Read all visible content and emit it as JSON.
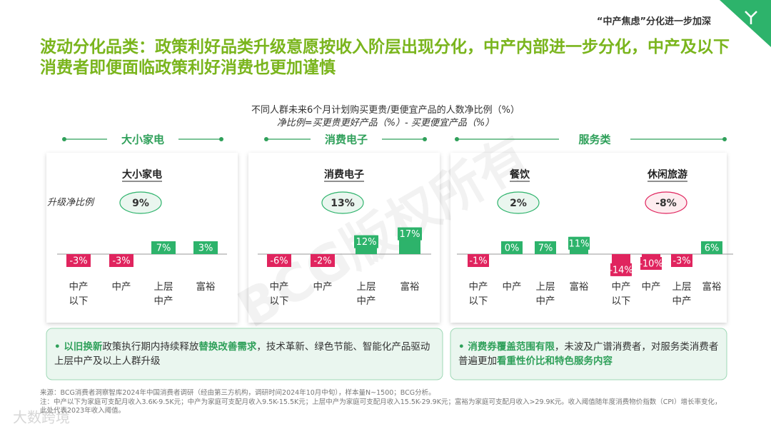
{
  "header": {
    "tag": "“中产焦虑”分化进一步加深",
    "title": "波动分化品类：政策利好品类升级意愿按收入阶层出现分化，中产内部进一步分化，中产及以下消费者即便面临政策利好消费也更加谨慎"
  },
  "subtitle": "不同人群未来6个月计划购买更贵/更便宜产品的人数净比例（%）",
  "formula": "净比例=买更贵更好产品（%）- 买更便宜产品（%）",
  "sections": [
    "大小家电",
    "消费电子",
    "服务类"
  ],
  "net_caption": "升级净比例",
  "chart_data": [
    {
      "type": "bar",
      "title": "大小家电",
      "net": "9%",
      "categories": [
        "中产\n以下",
        "中产",
        "上层\n中产",
        "富裕"
      ],
      "values": [
        -3,
        -3,
        7,
        3
      ],
      "value_labels": [
        "-3%",
        "-3%",
        "7%",
        "3%"
      ],
      "ylim": [
        -15,
        20
      ],
      "colors": {
        "positive": "#2db36b",
        "negative": "#e0245e"
      }
    },
    {
      "type": "bar",
      "title": "消费电子",
      "net": "13%",
      "categories": [
        "中产\n以下",
        "中产",
        "上层\n中产",
        "富裕"
      ],
      "values": [
        -6,
        -2,
        12,
        17
      ],
      "value_labels": [
        "-6%",
        "-2%",
        "12%",
        "17%"
      ],
      "ylim": [
        -15,
        20
      ],
      "colors": {
        "positive": "#2db36b",
        "negative": "#e0245e"
      }
    },
    {
      "type": "bar",
      "title": "餐饮",
      "net": "2%",
      "categories": [
        "中产\n以下",
        "中产",
        "上层\n中产",
        "富裕"
      ],
      "values": [
        -1,
        0,
        7,
        11
      ],
      "value_labels": [
        "-1%",
        "0%",
        "7%",
        "11%"
      ],
      "ylim": [
        -15,
        20
      ],
      "colors": {
        "positive": "#2db36b",
        "negative": "#e0245e"
      }
    },
    {
      "type": "bar",
      "title": "休闲旅游",
      "net": "-8%",
      "categories": [
        "中产\n以下",
        "中产",
        "上层\n中产",
        "富裕"
      ],
      "values": [
        -14,
        -10,
        -3,
        6
      ],
      "value_labels": [
        "-14%",
        "-10%",
        "-3%",
        "6%"
      ],
      "ylim": [
        -15,
        20
      ],
      "colors": {
        "positive": "#2db36b",
        "negative": "#e0245e"
      }
    }
  ],
  "callouts": [
    [
      {
        "text": "以旧换新",
        "bold": true
      },
      {
        "text": "政策执行期内持续释放",
        "bold": false
      },
      {
        "text": "替换改善需求",
        "bold": true
      },
      {
        "text": "，技术革新、绿色节能、智能化产品驱动上层中产及以上人群升级",
        "bold": false
      }
    ],
    [
      {
        "text": "消费券覆盖范围有限",
        "bold": true
      },
      {
        "text": "，未波及广谱消费者，对服务类消费者普遍更加",
        "bold": false
      },
      {
        "text": "看重性价比和特色服务内容",
        "bold": true
      }
    ]
  ],
  "footnotes": [
    "来源：BCG消费者洞察智库2024年中国消费者调研（经由第三方机构，调研时间2024年10月中旬），样本量N~1500；BCG分析。",
    "注：中产以下为家庭可支配月收入3.6K-9.5K元；中产为家庭可支配月收入9.5K-15.5K元；上层中产为家庭可支配月收入15.5K-29.9K元；富裕为家庭可支配月收入>29.9K元。收入阈值随年度消费物价指数（CPI）增长率变化，此处代表2023年收入阈值。"
  ],
  "watermark": "BCG版权所有",
  "logo": "大数跨境"
}
